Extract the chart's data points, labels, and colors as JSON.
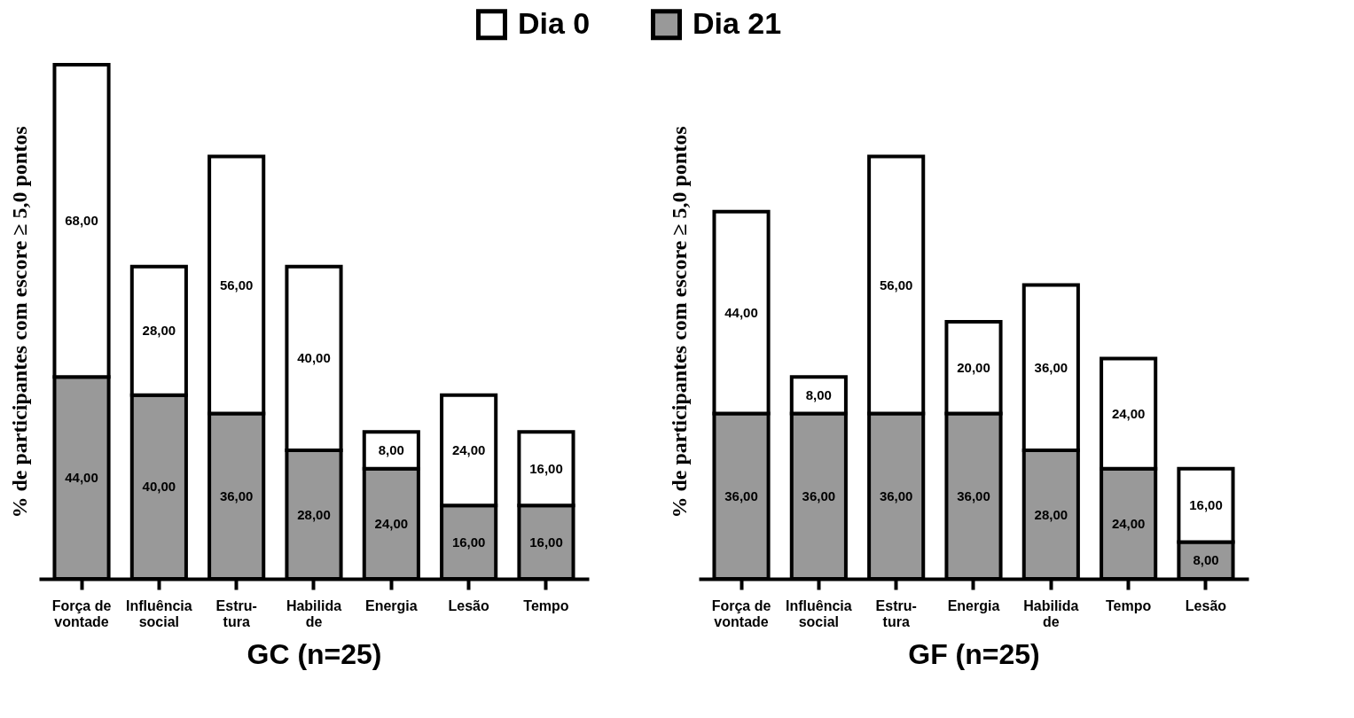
{
  "chart_data": [
    {
      "type": "bar",
      "stacked": true,
      "xlabel": "GC (n=25)",
      "ylabel": "% de participantes com escore ≥ 5,0 pontos",
      "legend": "top",
      "categories": [
        "Força de\nvontade",
        "Influência\nsocial",
        "Estru-\ntura",
        "Habilida\nde",
        "Energia",
        "Lesão",
        "Tempo"
      ],
      "series": [
        {
          "name": "Dia 21",
          "color": "#999999",
          "values": [
            44,
            40,
            36,
            28,
            24,
            16,
            16
          ],
          "value_labels": [
            "44,00",
            "40,00",
            "36,00",
            "28,00",
            "24,00",
            "16,00",
            "16,00"
          ]
        },
        {
          "name": "Dia 0",
          "color": "#ffffff",
          "values": [
            68,
            28,
            56,
            40,
            8,
            24,
            16
          ],
          "value_labels": [
            "68,00",
            "28,00",
            "56,00",
            "40,00",
            "8,00",
            "24,00",
            "16,00"
          ]
        }
      ]
    },
    {
      "type": "bar",
      "stacked": true,
      "xlabel": "GF (n=25)",
      "ylabel": "% de participantes com escore ≥ 5,0 pontos",
      "legend": "top",
      "categories": [
        "Força de\nvontade",
        "Influência\nsocial",
        "Estru-\ntura",
        "Energia",
        "Habilida\nde",
        "Tempo",
        "Lesão"
      ],
      "series": [
        {
          "name": "Dia 21",
          "color": "#999999",
          "values": [
            36,
            36,
            36,
            36,
            28,
            24,
            8
          ],
          "value_labels": [
            "36,00",
            "36,00",
            "36,00",
            "36,00",
            "28,00",
            "24,00",
            "8,00"
          ]
        },
        {
          "name": "Dia 0",
          "color": "#ffffff",
          "values": [
            44,
            8,
            56,
            20,
            36,
            24,
            16
          ],
          "value_labels": [
            "44,00",
            "8,00",
            "56,00",
            "20,00",
            "36,00",
            "24,00",
            "16,00"
          ]
        }
      ]
    }
  ]
}
